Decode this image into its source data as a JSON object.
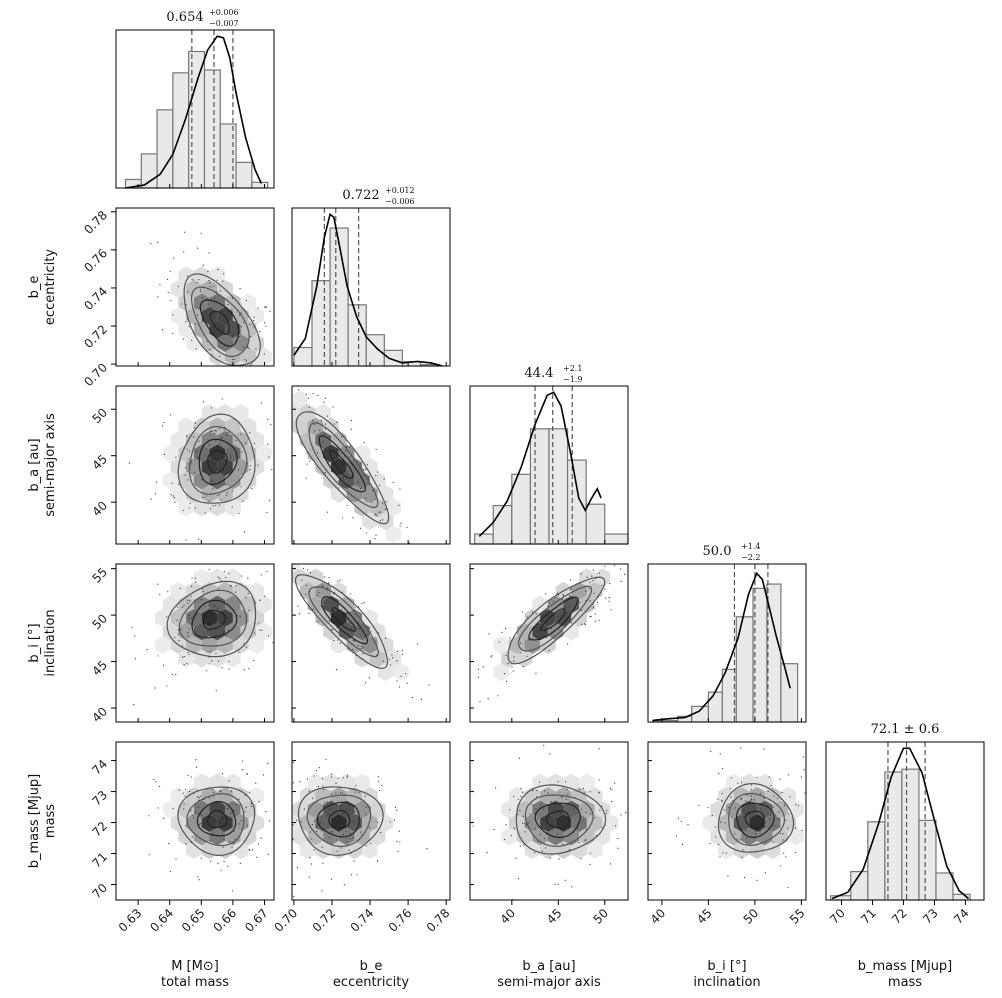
{
  "chart_data": {
    "type": "corner",
    "parameters": [
      {
        "key": "M",
        "label_line1": "M [M⊙]",
        "label_line2": "total mass",
        "range": [
          0.623,
          0.673
        ],
        "ticks": [
          0.63,
          0.64,
          0.65,
          0.66,
          0.67
        ],
        "tick_labels": [
          "0.63",
          "0.64",
          "0.65",
          "0.66",
          "0.67"
        ],
        "median": 0.654,
        "plus": "0.006",
        "minus": "0.007",
        "title_main": "0.654",
        "title_plus": "+0.006",
        "title_minus": "−0.007"
      },
      {
        "key": "b_e",
        "label_line1": "b_e",
        "label_line2": "eccentricity",
        "range": [
          0.699,
          0.782
        ],
        "ticks": [
          0.7,
          0.72,
          0.74,
          0.76,
          0.78
        ],
        "tick_labels": [
          "0.70",
          "0.72",
          "0.74",
          "0.76",
          "0.78"
        ],
        "median": 0.722,
        "plus": "0.012",
        "minus": "0.006",
        "title_main": "0.722",
        "title_plus": "+0.012",
        "title_minus": "−0.006"
      },
      {
        "key": "b_a",
        "label_line1": "b_a [au]",
        "label_line2": "semi-major axis",
        "range": [
          35.5,
          52.5
        ],
        "ticks": [
          40,
          45,
          50
        ],
        "tick_labels": [
          "40",
          "45",
          "50"
        ],
        "median": 44.4,
        "plus": "2.1",
        "minus": "1.9",
        "title_main": "44.4",
        "title_plus": "+2.1",
        "title_minus": "−1.9"
      },
      {
        "key": "b_i",
        "label_line1": "b_i [°]",
        "label_line2": "inclination",
        "range": [
          38.5,
          55.5
        ],
        "ticks": [
          40,
          45,
          50,
          55
        ],
        "tick_labels": [
          "40",
          "45",
          "50",
          "55"
        ],
        "median": 50.0,
        "plus": "1.4",
        "minus": "2.2",
        "title_main": "50.0",
        "title_plus": "+1.4",
        "title_minus": "−2.2"
      },
      {
        "key": "b_mass",
        "label_line1": "b_mass [Mjup]",
        "label_line2": "mass",
        "range": [
          69.5,
          74.6
        ],
        "ticks": [
          70,
          71,
          72,
          73,
          74
        ],
        "tick_labels": [
          "70",
          "71",
          "72",
          "73",
          "74"
        ],
        "median": 72.1,
        "plus": "0.6",
        "minus": "0.6",
        "title_main": "72.1 ± 0.6",
        "title_plus": "",
        "title_minus": ""
      }
    ],
    "histograms": [
      {
        "bins": [
          0.626,
          0.631,
          0.636,
          0.641,
          0.646,
          0.651,
          0.656,
          0.661,
          0.666,
          0.671
        ],
        "counts": [
          0.06,
          0.24,
          0.55,
          0.81,
          0.96,
          0.83,
          0.45,
          0.18,
          0.04
        ],
        "kde": [
          [
            0.626,
            0.0
          ],
          [
            0.632,
            0.02
          ],
          [
            0.637,
            0.09
          ],
          [
            0.641,
            0.22
          ],
          [
            0.645,
            0.45
          ],
          [
            0.649,
            0.72
          ],
          [
            0.652,
            0.9
          ],
          [
            0.655,
            0.99
          ],
          [
            0.657,
            0.98
          ],
          [
            0.659,
            0.85
          ],
          [
            0.661,
            0.62
          ],
          [
            0.664,
            0.33
          ],
          [
            0.667,
            0.12
          ],
          [
            0.669,
            0.03
          ]
        ]
      },
      {
        "bins": [
          0.7,
          0.7095,
          0.719,
          0.7285,
          0.738,
          0.7475,
          0.757,
          0.7665,
          0.776
        ],
        "counts": [
          0.13,
          0.6,
          0.97,
          0.43,
          0.22,
          0.11,
          0.03,
          0.01
        ],
        "kde": [
          [
            0.7,
            0.07
          ],
          [
            0.706,
            0.18
          ],
          [
            0.712,
            0.52
          ],
          [
            0.716,
            0.84
          ],
          [
            0.719,
            0.99
          ],
          [
            0.721,
            0.97
          ],
          [
            0.724,
            0.78
          ],
          [
            0.728,
            0.52
          ],
          [
            0.733,
            0.32
          ],
          [
            0.738,
            0.19
          ],
          [
            0.744,
            0.11
          ],
          [
            0.75,
            0.05
          ],
          [
            0.757,
            0.02
          ],
          [
            0.765,
            0.03
          ],
          [
            0.772,
            0.02
          ],
          [
            0.778,
            0.0
          ]
        ]
      },
      {
        "bins": [
          36.0,
          38.0,
          40.0,
          42.0,
          44.0,
          46.0,
          48.0,
          50.0,
          52.5
        ],
        "counts": [
          0.07,
          0.27,
          0.49,
          0.81,
          0.81,
          0.59,
          0.28,
          0.07
        ],
        "kde": [
          [
            36.5,
            0.05
          ],
          [
            38.0,
            0.14
          ],
          [
            39.5,
            0.28
          ],
          [
            41.0,
            0.5
          ],
          [
            42.5,
            0.78
          ],
          [
            43.8,
            0.97
          ],
          [
            44.5,
            0.99
          ],
          [
            45.3,
            0.9
          ],
          [
            46.3,
            0.6
          ],
          [
            47.2,
            0.3
          ],
          [
            47.9,
            0.22
          ],
          [
            48.6,
            0.3
          ],
          [
            49.2,
            0.36
          ],
          [
            49.6,
            0.3
          ]
        ]
      },
      {
        "bins": [
          39.0,
          41.7,
          43.2,
          45.0,
          46.5,
          48.0,
          49.8,
          51.3,
          52.8,
          54.6
        ],
        "counts": [
          0.01,
          0.04,
          0.11,
          0.21,
          0.37,
          0.74,
          0.94,
          0.97,
          0.41
        ],
        "kde": [
          [
            39.0,
            0.01
          ],
          [
            40.5,
            0.02
          ],
          [
            42.5,
            0.03
          ],
          [
            44.0,
            0.07
          ],
          [
            45.5,
            0.17
          ],
          [
            46.8,
            0.32
          ],
          [
            48.2,
            0.55
          ],
          [
            49.3,
            0.83
          ],
          [
            50.2,
            0.97
          ],
          [
            50.8,
            0.93
          ],
          [
            51.5,
            0.76
          ],
          [
            52.3,
            0.56
          ],
          [
            53.2,
            0.36
          ],
          [
            53.8,
            0.22
          ]
        ]
      },
      {
        "bins": [
          69.65,
          70.3,
          70.85,
          71.4,
          71.95,
          72.5,
          73.05,
          73.6,
          74.15
        ],
        "counts": [
          0.03,
          0.2,
          0.55,
          0.9,
          0.92,
          0.56,
          0.19,
          0.04
        ],
        "kde": [
          [
            69.7,
            0.01
          ],
          [
            70.2,
            0.05
          ],
          [
            70.7,
            0.2
          ],
          [
            71.2,
            0.5
          ],
          [
            71.6,
            0.8
          ],
          [
            72.0,
            0.99
          ],
          [
            72.2,
            0.99
          ],
          [
            72.6,
            0.83
          ],
          [
            73.0,
            0.52
          ],
          [
            73.4,
            0.22
          ],
          [
            73.8,
            0.06
          ],
          [
            74.1,
            0.01
          ]
        ]
      }
    ],
    "pairs": [
      {
        "i": 1,
        "j": 0,
        "center": [
          0.656,
          0.722
        ],
        "spread": [
          0.006,
          0.012
        ],
        "rho": -0.55
      },
      {
        "i": 2,
        "j": 0,
        "center": [
          0.655,
          44.4
        ],
        "spread": [
          0.006,
          2.4
        ],
        "rho": 0.1
      },
      {
        "i": 2,
        "j": 1,
        "center": [
          0.725,
          44.0
        ],
        "spread": [
          0.012,
          3.0
        ],
        "rho": -0.85
      },
      {
        "i": 3,
        "j": 0,
        "center": [
          0.654,
          49.5
        ],
        "spread": [
          0.007,
          2.0
        ],
        "rho": 0.15
      },
      {
        "i": 3,
        "j": 1,
        "center": [
          0.726,
          49.5
        ],
        "spread": [
          0.012,
          2.5
        ],
        "rho": -0.85
      },
      {
        "i": 3,
        "j": 2,
        "center": [
          44.5,
          49.5
        ],
        "spread": [
          2.6,
          2.3
        ],
        "rho": 0.85
      },
      {
        "i": 4,
        "j": 0,
        "center": [
          0.655,
          72.1
        ],
        "spread": [
          0.006,
          0.55
        ],
        "rho": 0.0
      },
      {
        "i": 4,
        "j": 1,
        "center": [
          0.724,
          72.1
        ],
        "spread": [
          0.011,
          0.55
        ],
        "rho": 0.0
      },
      {
        "i": 4,
        "j": 2,
        "center": [
          45.0,
          72.1
        ],
        "spread": [
          2.4,
          0.55
        ],
        "rho": 0.0
      },
      {
        "i": 4,
        "j": 3,
        "center": [
          50.0,
          72.1
        ],
        "spread": [
          2.0,
          0.55
        ],
        "rho": 0.0
      }
    ]
  }
}
